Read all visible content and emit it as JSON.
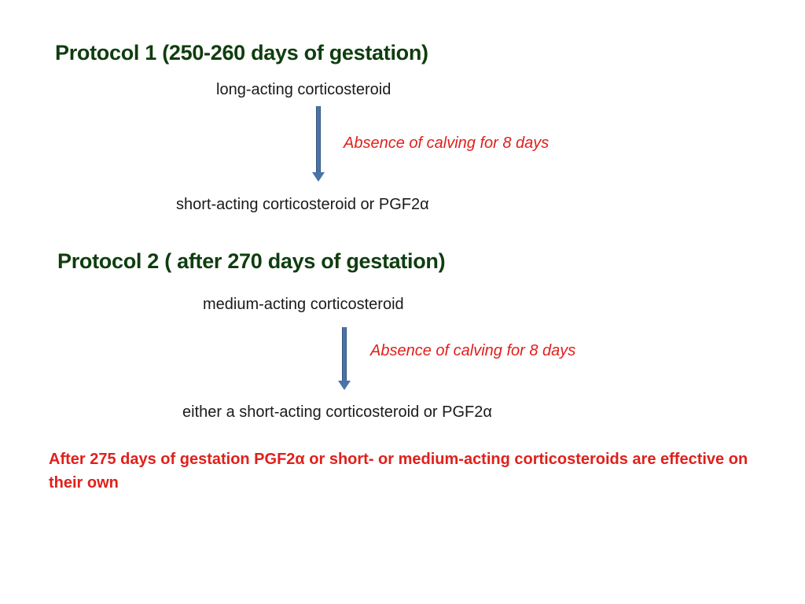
{
  "protocol1": {
    "title": "Protocol 1 (250-260 days of gestation)",
    "first_step": "long-acting corticosteroid",
    "condition": "Absence of calving for 8 days",
    "second_step": "short-acting corticosteroid or PGF2α"
  },
  "protocol2": {
    "title": "Protocol 2 ( after 270 days of gestation)",
    "first_step": "medium-acting corticosteroid",
    "condition": "Absence of calving for 8 days",
    "second_step": "either a short-acting corticosteroid or PGF2α"
  },
  "conclusion": "After 275 days of gestation PGF2α or short- or medium-acting corticosteroids are effective on their own",
  "colors": {
    "heading": "#0f3d0f",
    "condition_and_conclusion": "#e0201b",
    "arrow": "#4a74a8"
  }
}
